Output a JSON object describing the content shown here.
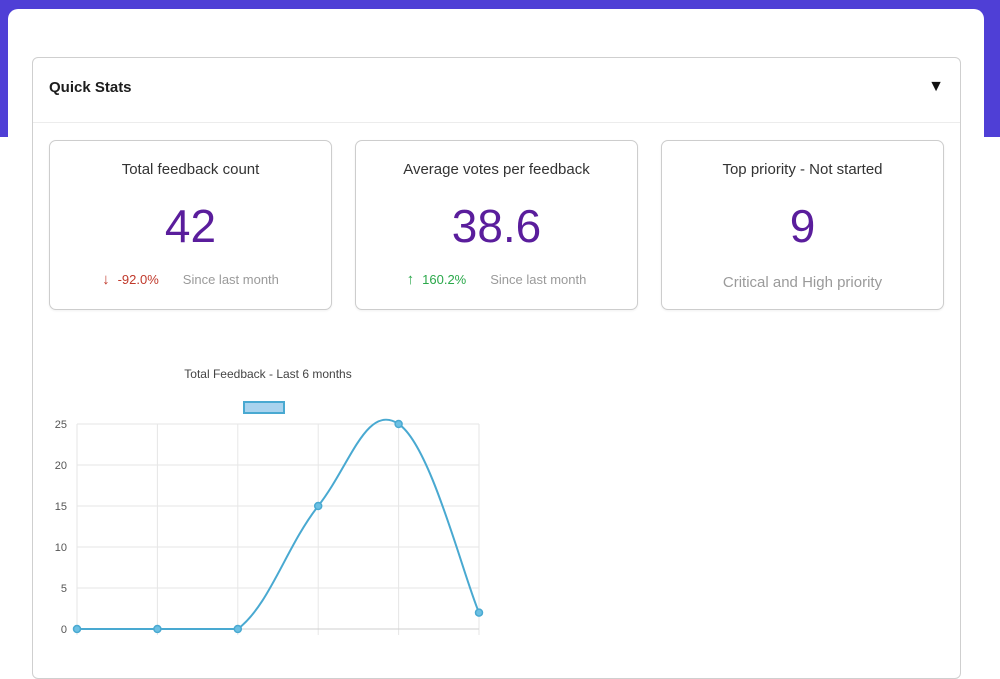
{
  "quick_stats": {
    "title": "Quick Stats",
    "collapse_icon": "triangle-down-icon",
    "cards": [
      {
        "label": "Total feedback count",
        "value": "42",
        "delta": "-92.0%",
        "delta_direction": "down",
        "since": "Since last month"
      },
      {
        "label": "Average votes per feedback",
        "value": "38.6",
        "delta": "160.2%",
        "delta_direction": "up",
        "since": "Since last month"
      },
      {
        "label": "Top priority - Not started",
        "value": "9",
        "note": "Critical and High priority"
      }
    ]
  },
  "colors": {
    "header_band": "#4f3fd6",
    "value_purple": "#5a1d9c",
    "down_red": "#c0392b",
    "up_green": "#2aa84a",
    "line_blue": "#49a9d1"
  },
  "chart_data": {
    "type": "line",
    "title": "Total Feedback - Last 6 months",
    "x": [
      "",
      "",
      "",
      "",
      "",
      ""
    ],
    "series": [
      {
        "values": [
          0,
          0,
          0,
          15,
          25,
          2
        ]
      }
    ],
    "ylim": [
      0,
      25
    ],
    "yticks": [
      0,
      5,
      10,
      15,
      20,
      25
    ],
    "grid": true,
    "legend": "top-center"
  }
}
